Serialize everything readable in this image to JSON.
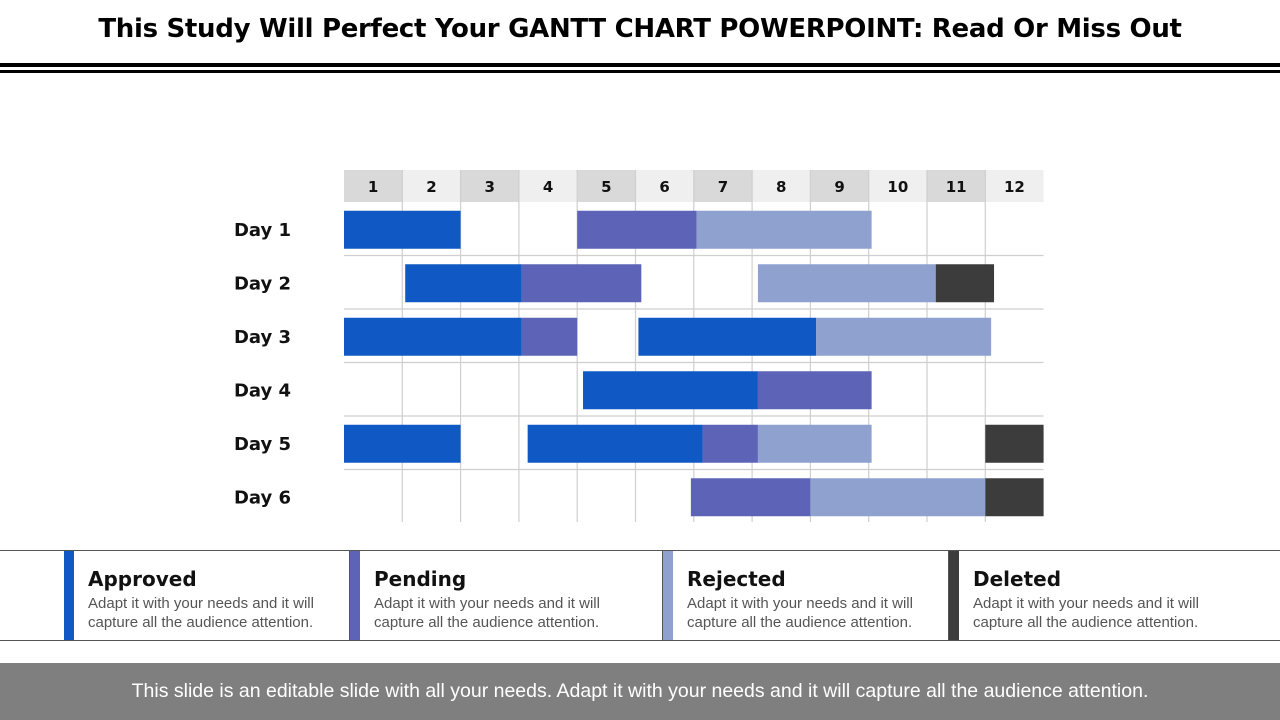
{
  "slide": {
    "title": "This Study Will Perfect Your GANTT CHART POWERPOINT: Read Or Miss Out",
    "footer": "This slide is an editable slide with all your needs. Adapt it with your needs and it will capture all the audience attention."
  },
  "legend": [
    {
      "key": "approved",
      "label": "Approved",
      "desc": "Adapt it with your needs and it will capture all the audience attention.",
      "color": "#1058c3"
    },
    {
      "key": "pending",
      "label": "Pending",
      "desc": "Adapt it with your needs and it will capture all the audience attention.",
      "color": "#5d63b7"
    },
    {
      "key": "rejected",
      "label": "Rejected",
      "desc": "Adapt it with your needs and it will capture all the audience attention.",
      "color": "#8ea1cf"
    },
    {
      "key": "deleted",
      "label": "Deleted",
      "desc": "Adapt it with your needs and it will capture all the audience attention.",
      "color": "#3c3c3c"
    }
  ],
  "chart_data": {
    "type": "gantt",
    "columns": [
      "1",
      "2",
      "3",
      "4",
      "5",
      "6",
      "7",
      "8",
      "9",
      "10",
      "11",
      "12"
    ],
    "rows": [
      "Day 1",
      "Day 2",
      "Day 3",
      "Day 4",
      "Day 5",
      "Day 6"
    ],
    "x_range": [
      0,
      12
    ],
    "grid": true,
    "tasks": [
      {
        "row": 0,
        "status": "approved",
        "start": 0,
        "end": 2
      },
      {
        "row": 0,
        "status": "pending",
        "start": 4,
        "end": 6.05
      },
      {
        "row": 0,
        "status": "rejected",
        "start": 6.05,
        "end": 9.05
      },
      {
        "row": 1,
        "status": "approved",
        "start": 1.05,
        "end": 3.05
      },
      {
        "row": 1,
        "status": "pending",
        "start": 3.05,
        "end": 5.1
      },
      {
        "row": 1,
        "status": "rejected",
        "start": 7.1,
        "end": 10.15
      },
      {
        "row": 1,
        "status": "deleted",
        "start": 10.15,
        "end": 11.15
      },
      {
        "row": 2,
        "status": "approved",
        "start": 0,
        "end": 3.05
      },
      {
        "row": 2,
        "status": "pending",
        "start": 3.05,
        "end": 4
      },
      {
        "row": 2,
        "status": "approved",
        "start": 5.05,
        "end": 8.1
      },
      {
        "row": 2,
        "status": "rejected",
        "start": 8.1,
        "end": 11.1
      },
      {
        "row": 3,
        "status": "approved",
        "start": 4.1,
        "end": 7.1
      },
      {
        "row": 3,
        "status": "pending",
        "start": 7.1,
        "end": 9.05
      },
      {
        "row": 4,
        "status": "approved",
        "start": 0,
        "end": 2
      },
      {
        "row": 4,
        "status": "approved",
        "start": 3.15,
        "end": 6.15
      },
      {
        "row": 4,
        "status": "pending",
        "start": 6.15,
        "end": 7.1
      },
      {
        "row": 4,
        "status": "rejected",
        "start": 7.1,
        "end": 9.05
      },
      {
        "row": 4,
        "status": "deleted",
        "start": 11,
        "end": 12
      },
      {
        "row": 5,
        "status": "pending",
        "start": 5.95,
        "end": 8
      },
      {
        "row": 5,
        "status": "rejected",
        "start": 8,
        "end": 11
      },
      {
        "row": 5,
        "status": "deleted",
        "start": 11,
        "end": 12
      }
    ]
  }
}
